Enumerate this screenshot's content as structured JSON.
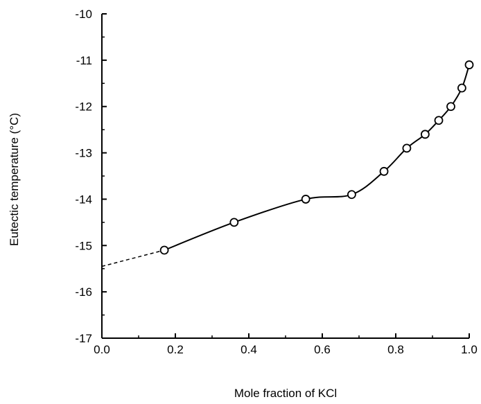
{
  "chart_data": {
    "type": "line",
    "title": "",
    "xlabel": "Mole fraction of KCl",
    "ylabel": "Eutectic temperature (°C)",
    "xlim": [
      0.0,
      1.0
    ],
    "ylim": [
      -17,
      -10
    ],
    "x_ticks": [
      "0.0",
      "0.2",
      "0.4",
      "0.6",
      "0.8",
      "1.0"
    ],
    "y_ticks": [
      "-10",
      "-11",
      "-12",
      "-13",
      "-14",
      "-15",
      "-16",
      "-17"
    ],
    "grid": false,
    "legend": "none",
    "series": [
      {
        "points": [
          {
            "x": 0.17,
            "y": -15.1
          },
          {
            "x": 0.36,
            "y": -14.5
          },
          {
            "x": 0.555,
            "y": -14.0
          },
          {
            "x": 0.68,
            "y": -13.9
          },
          {
            "x": 0.768,
            "y": -13.4
          },
          {
            "x": 0.83,
            "y": -12.9
          },
          {
            "x": 0.88,
            "y": -12.6
          },
          {
            "x": 0.917,
            "y": -12.3
          },
          {
            "x": 0.95,
            "y": -12.0
          },
          {
            "x": 0.98,
            "y": -11.6
          },
          {
            "x": 1.0,
            "y": -11.1
          }
        ],
        "extrapolation": {
          "from": {
            "x": 0.0,
            "y": -15.45
          },
          "to": {
            "x": 0.17,
            "y": -15.1
          },
          "style": "dashed"
        }
      }
    ]
  }
}
